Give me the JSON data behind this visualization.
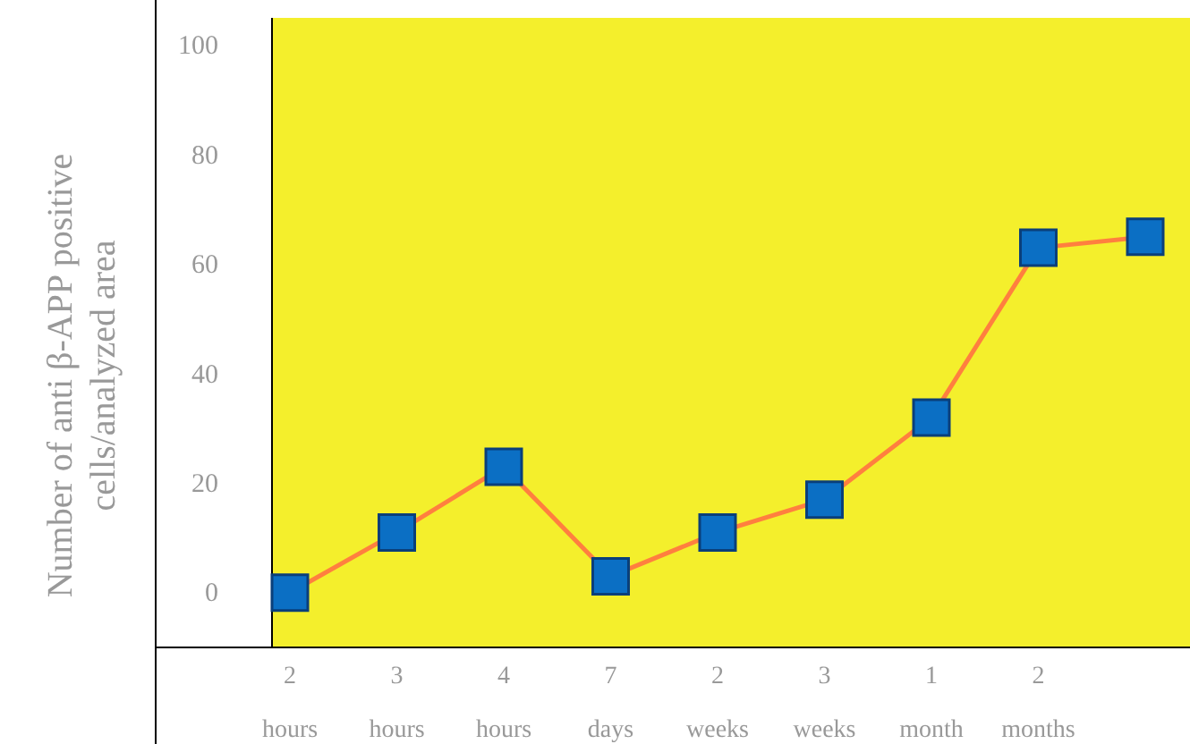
{
  "chart_data": {
    "type": "line",
    "ylabel": "Number of anti β-APP positive cells/analyzed area",
    "categories": [
      "2 hours",
      "3 hours",
      "4 hours",
      "7 days",
      "2 weeks",
      "3 weeks",
      "1 month",
      "2 months",
      null
    ],
    "series": [
      {
        "color": "#ff7f3f",
        "values": [
          0,
          11,
          23,
          3,
          11,
          17,
          32,
          63,
          65
        ]
      }
    ],
    "ylim": [
      -10,
      105
    ],
    "yticks": [
      0,
      20,
      40,
      60,
      80,
      100
    ],
    "grid": false,
    "marker": "square",
    "line_style": "solid"
  }
}
